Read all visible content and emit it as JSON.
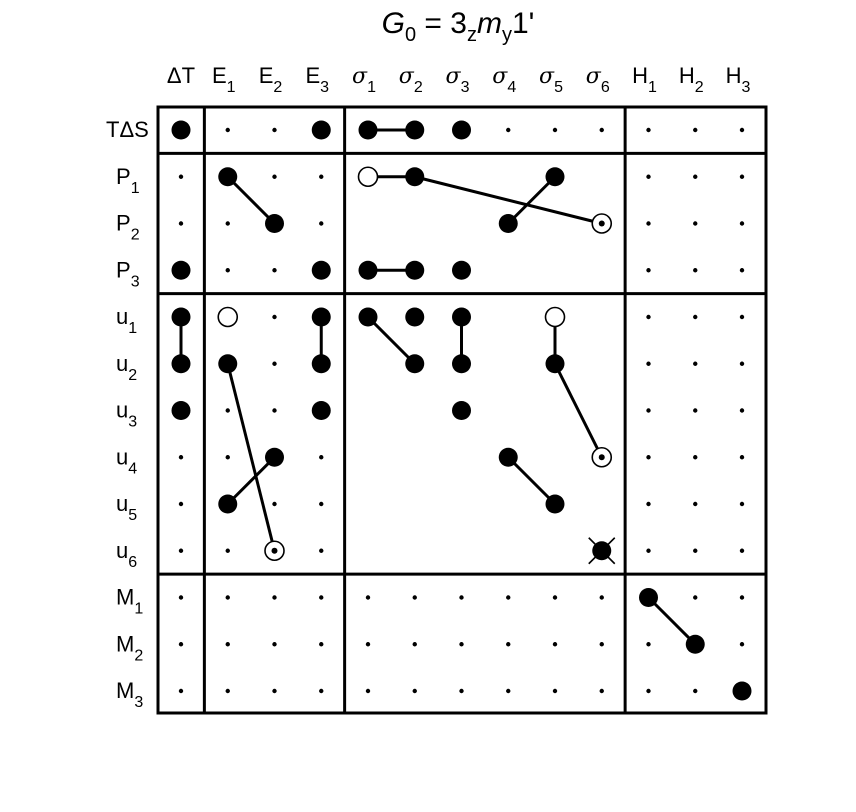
{
  "title": {
    "main": "G",
    "main_sub": "0",
    "eq": " = 3",
    "z_sub": "z",
    "m": "m",
    "y_sub": "y",
    "tail": "1'"
  },
  "columns": [
    {
      "id": "dT",
      "base": "ΔT",
      "sub": "",
      "greek": false
    },
    {
      "id": "E1",
      "base": "E",
      "sub": "1",
      "greek": false
    },
    {
      "id": "E2",
      "base": "E",
      "sub": "2",
      "greek": false
    },
    {
      "id": "E3",
      "base": "E",
      "sub": "3",
      "greek": false
    },
    {
      "id": "s1",
      "base": "σ",
      "sub": "1",
      "greek": true
    },
    {
      "id": "s2",
      "base": "σ",
      "sub": "2",
      "greek": true
    },
    {
      "id": "s3",
      "base": "σ",
      "sub": "3",
      "greek": true
    },
    {
      "id": "s4",
      "base": "σ",
      "sub": "4",
      "greek": true
    },
    {
      "id": "s5",
      "base": "σ",
      "sub": "5",
      "greek": true
    },
    {
      "id": "s6",
      "base": "σ",
      "sub": "6",
      "greek": true
    },
    {
      "id": "H1",
      "base": "H",
      "sub": "1",
      "greek": false
    },
    {
      "id": "H2",
      "base": "H",
      "sub": "2",
      "greek": false
    },
    {
      "id": "H3",
      "base": "H",
      "sub": "3",
      "greek": false
    }
  ],
  "rows": [
    {
      "id": "TdS",
      "base": "TΔS",
      "sub": ""
    },
    {
      "id": "P1",
      "base": "P",
      "sub": "1"
    },
    {
      "id": "P2",
      "base": "P",
      "sub": "2"
    },
    {
      "id": "P3",
      "base": "P",
      "sub": "3"
    },
    {
      "id": "u1",
      "base": "u",
      "sub": "1"
    },
    {
      "id": "u2",
      "base": "u",
      "sub": "2"
    },
    {
      "id": "u3",
      "base": "u",
      "sub": "3"
    },
    {
      "id": "u4",
      "base": "u",
      "sub": "4"
    },
    {
      "id": "u5",
      "base": "u",
      "sub": "5"
    },
    {
      "id": "u6",
      "base": "u",
      "sub": "6"
    },
    {
      "id": "M1",
      "base": "M",
      "sub": "1"
    },
    {
      "id": "M2",
      "base": "M",
      "sub": "2"
    },
    {
      "id": "M3",
      "base": "M",
      "sub": "3"
    }
  ],
  "column_groups": [
    [
      0,
      0
    ],
    [
      1,
      3
    ],
    [
      4,
      9
    ],
    [
      10,
      12
    ]
  ],
  "row_groups": [
    [
      0,
      0
    ],
    [
      1,
      3
    ],
    [
      4,
      9
    ],
    [
      10,
      12
    ]
  ],
  "empty_blocks": [
    {
      "rows": [
        1,
        3
      ],
      "cols": [
        4,
        9
      ]
    },
    {
      "rows": [
        4,
        9
      ],
      "cols": [
        4,
        9
      ]
    }
  ],
  "markers": [
    {
      "row": 0,
      "col": 0,
      "type": "filled"
    },
    {
      "row": 0,
      "col": 3,
      "type": "filled"
    },
    {
      "row": 0,
      "col": 4,
      "type": "filled"
    },
    {
      "row": 0,
      "col": 5,
      "type": "filled"
    },
    {
      "row": 0,
      "col": 6,
      "type": "filled"
    },
    {
      "row": 1,
      "col": 1,
      "type": "filled"
    },
    {
      "row": 1,
      "col": 4,
      "type": "open"
    },
    {
      "row": 1,
      "col": 5,
      "type": "filled"
    },
    {
      "row": 1,
      "col": 8,
      "type": "filled"
    },
    {
      "row": 2,
      "col": 2,
      "type": "filled"
    },
    {
      "row": 2,
      "col": 7,
      "type": "filled"
    },
    {
      "row": 2,
      "col": 9,
      "type": "dotted"
    },
    {
      "row": 3,
      "col": 0,
      "type": "filled"
    },
    {
      "row": 3,
      "col": 3,
      "type": "filled"
    },
    {
      "row": 3,
      "col": 4,
      "type": "filled"
    },
    {
      "row": 3,
      "col": 5,
      "type": "filled"
    },
    {
      "row": 3,
      "col": 6,
      "type": "filled"
    },
    {
      "row": 4,
      "col": 0,
      "type": "filled"
    },
    {
      "row": 4,
      "col": 1,
      "type": "open"
    },
    {
      "row": 4,
      "col": 3,
      "type": "filled"
    },
    {
      "row": 4,
      "col": 4,
      "type": "filled"
    },
    {
      "row": 4,
      "col": 5,
      "type": "filled"
    },
    {
      "row": 4,
      "col": 6,
      "type": "filled"
    },
    {
      "row": 4,
      "col": 8,
      "type": "open"
    },
    {
      "row": 5,
      "col": 0,
      "type": "filled"
    },
    {
      "row": 5,
      "col": 1,
      "type": "filled"
    },
    {
      "row": 5,
      "col": 3,
      "type": "filled"
    },
    {
      "row": 5,
      "col": 5,
      "type": "filled"
    },
    {
      "row": 5,
      "col": 6,
      "type": "filled"
    },
    {
      "row": 5,
      "col": 8,
      "type": "filled"
    },
    {
      "row": 6,
      "col": 0,
      "type": "filled"
    },
    {
      "row": 6,
      "col": 3,
      "type": "filled"
    },
    {
      "row": 6,
      "col": 6,
      "type": "filled"
    },
    {
      "row": 7,
      "col": 2,
      "type": "filled"
    },
    {
      "row": 7,
      "col": 7,
      "type": "filled"
    },
    {
      "row": 7,
      "col": 9,
      "type": "dotted"
    },
    {
      "row": 8,
      "col": 1,
      "type": "filled"
    },
    {
      "row": 8,
      "col": 8,
      "type": "filled"
    },
    {
      "row": 9,
      "col": 2,
      "type": "dotted"
    },
    {
      "row": 9,
      "col": 9,
      "type": "crossed"
    },
    {
      "row": 10,
      "col": 10,
      "type": "filled"
    },
    {
      "row": 11,
      "col": 11,
      "type": "filled"
    },
    {
      "row": 12,
      "col": 12,
      "type": "filled"
    }
  ],
  "connections": [
    {
      "from": [
        0,
        4
      ],
      "to": [
        0,
        5
      ]
    },
    {
      "from": [
        1,
        1
      ],
      "to": [
        2,
        2
      ]
    },
    {
      "from": [
        1,
        4
      ],
      "to": [
        1,
        5
      ]
    },
    {
      "from": [
        1,
        5
      ],
      "to": [
        2,
        9
      ]
    },
    {
      "from": [
        1,
        8
      ],
      "to": [
        2,
        7
      ]
    },
    {
      "from": [
        3,
        4
      ],
      "to": [
        3,
        5
      ]
    },
    {
      "from": [
        4,
        0
      ],
      "to": [
        5,
        0
      ]
    },
    {
      "from": [
        4,
        3
      ],
      "to": [
        5,
        3
      ]
    },
    {
      "from": [
        4,
        4
      ],
      "to": [
        5,
        5
      ]
    },
    {
      "from": [
        4,
        6
      ],
      "to": [
        5,
        6
      ]
    },
    {
      "from": [
        4,
        8
      ],
      "to": [
        5,
        8
      ]
    },
    {
      "from": [
        5,
        8
      ],
      "to": [
        7,
        9
      ]
    },
    {
      "from": [
        5,
        1
      ],
      "to": [
        9,
        2
      ]
    },
    {
      "from": [
        7,
        2
      ],
      "to": [
        8,
        1
      ]
    },
    {
      "from": [
        7,
        7
      ],
      "to": [
        8,
        8
      ]
    },
    {
      "from": [
        10,
        10
      ],
      "to": [
        11,
        11
      ]
    }
  ]
}
